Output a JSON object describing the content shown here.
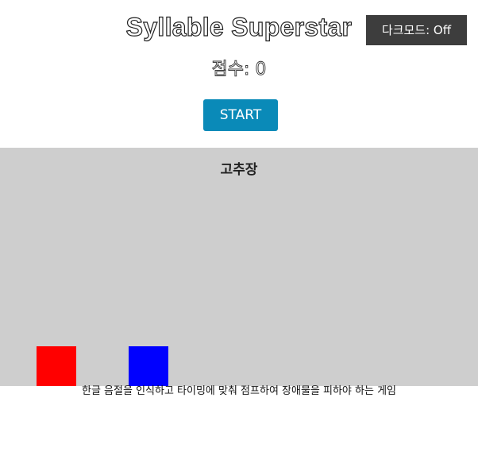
{
  "header": {
    "title": "Syllable Superstar",
    "dark_mode_label": "다크모드: Off"
  },
  "score": {
    "label": "점수: 0",
    "value": 0
  },
  "controls": {
    "start_label": "START"
  },
  "stage": {
    "name": "고추장",
    "background_color": "#cecece",
    "player_color": "#ff0000",
    "obstacle_color": "#0000ff"
  },
  "footer": {
    "description": "한글 음절을 인식하고 타이밍에 맞춰 점프하여 장애물을 피하야 하는 게임"
  },
  "colors": {
    "start_button": "#0a8ab8",
    "dark_toggle": "#3d3d3d"
  }
}
